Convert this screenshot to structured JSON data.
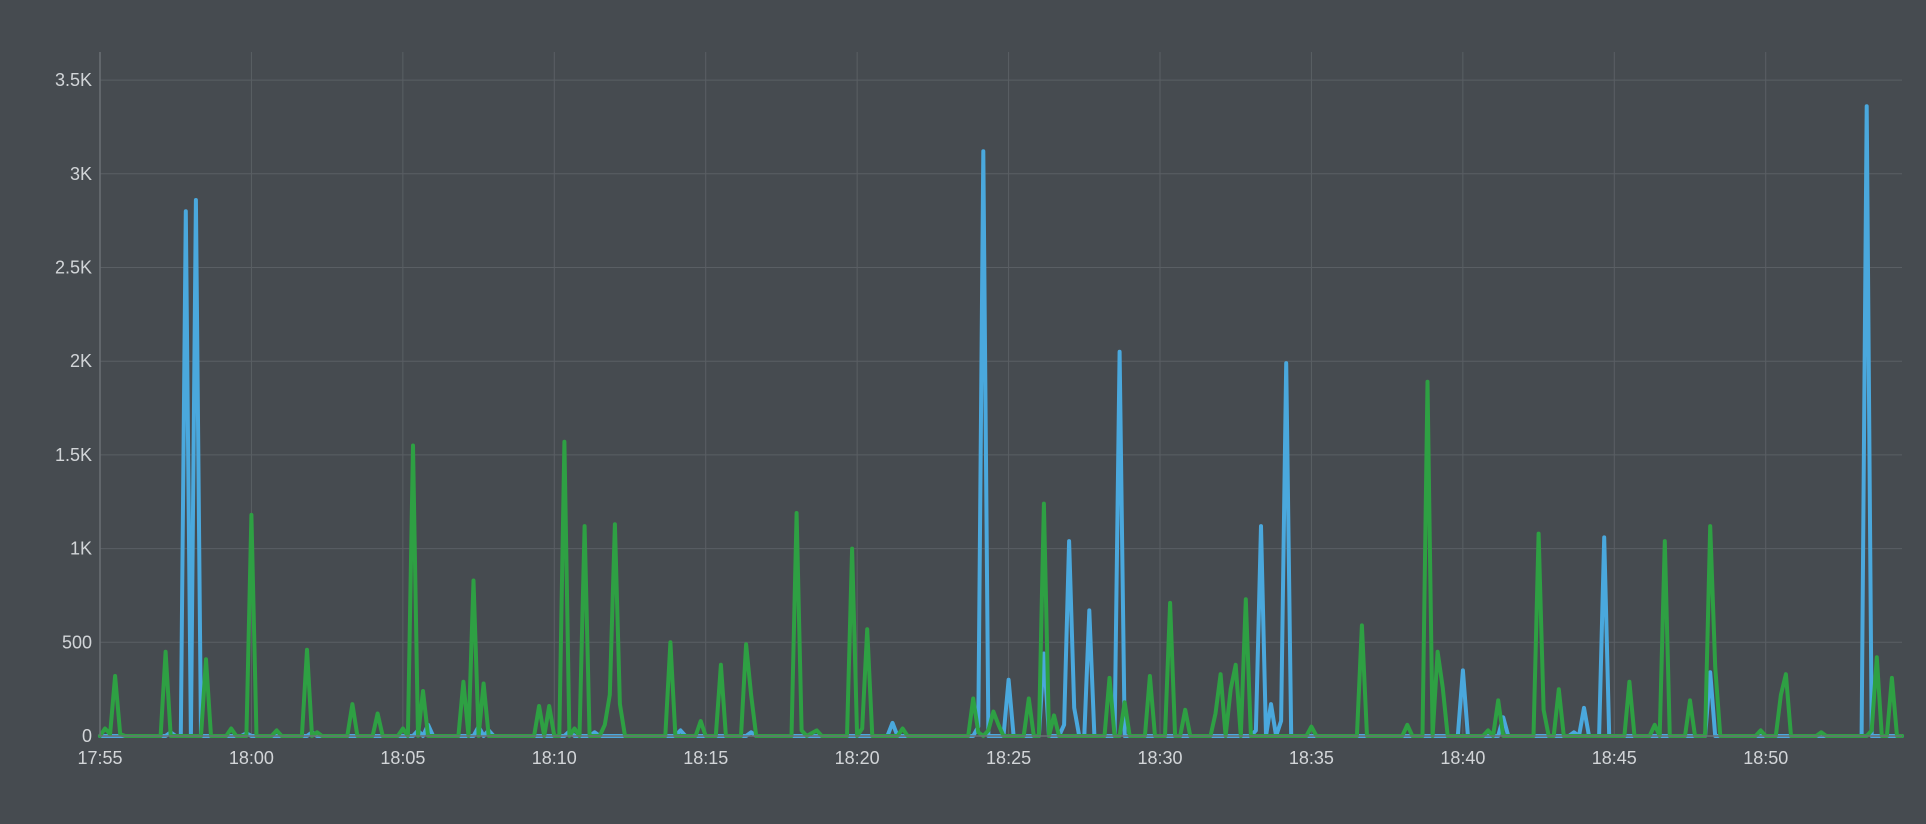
{
  "chart_data": {
    "type": "line",
    "title": "",
    "xlabel": "",
    "ylabel": "",
    "x_start": "17:55",
    "x_end": "18:54:30",
    "x_step_seconds": 10,
    "ylim": [
      0,
      3650
    ],
    "yticks": [
      0,
      500,
      1000,
      1500,
      2000,
      2500,
      3000,
      3500
    ],
    "ytick_labels": [
      "0",
      "500",
      "1K",
      "1.5K",
      "2K",
      "2.5K",
      "3K",
      "3.5K"
    ],
    "xtick_labels": [
      "17:55",
      "18:00",
      "18:05",
      "18:10",
      "18:15",
      "18:20",
      "18:25",
      "18:30",
      "18:35",
      "18:40",
      "18:45",
      "18:50"
    ],
    "grid": true,
    "legend": "none",
    "series": [
      {
        "color": "#4aa8dd",
        "points": [
          [
            "17:55:00",
            0
          ],
          [
            "17:57:10",
            0
          ],
          [
            "17:57:20",
            20
          ],
          [
            "17:57:30",
            0
          ],
          [
            "17:57:40",
            0
          ],
          [
            "17:57:50",
            2800
          ],
          [
            "17:58:00",
            0
          ],
          [
            "17:58:10",
            2860
          ],
          [
            "17:58:20",
            0
          ],
          [
            "17:59:40",
            0
          ],
          [
            "17:59:50",
            15
          ],
          [
            "18:00:00",
            0
          ],
          [
            "18:01:50",
            0
          ],
          [
            "18:02:00",
            20
          ],
          [
            "18:02:10",
            0
          ],
          [
            "18:05:20",
            0
          ],
          [
            "18:05:30",
            30
          ],
          [
            "18:05:40",
            0
          ],
          [
            "18:05:50",
            60
          ],
          [
            "18:06:00",
            0
          ],
          [
            "18:07:20",
            0
          ],
          [
            "18:07:30",
            50
          ],
          [
            "18:07:40",
            0
          ],
          [
            "18:07:50",
            30
          ],
          [
            "18:08:00",
            0
          ],
          [
            "18:10:20",
            0
          ],
          [
            "18:10:30",
            25
          ],
          [
            "18:10:40",
            0
          ],
          [
            "18:11:10",
            0
          ],
          [
            "18:11:20",
            20
          ],
          [
            "18:11:30",
            0
          ],
          [
            "18:14:00",
            0
          ],
          [
            "18:14:10",
            30
          ],
          [
            "18:14:20",
            0
          ],
          [
            "18:16:20",
            0
          ],
          [
            "18:16:30",
            20
          ],
          [
            "18:16:40",
            0
          ],
          [
            "18:21:00",
            0
          ],
          [
            "18:21:10",
            70
          ],
          [
            "18:21:20",
            0
          ],
          [
            "18:23:50",
            0
          ],
          [
            "18:24:00",
            50
          ],
          [
            "18:24:10",
            3120
          ],
          [
            "18:24:20",
            0
          ],
          [
            "18:24:50",
            0
          ],
          [
            "18:25:00",
            300
          ],
          [
            "18:25:10",
            0
          ],
          [
            "18:26:00",
            0
          ],
          [
            "18:26:10",
            440
          ],
          [
            "18:26:20",
            0
          ],
          [
            "18:26:40",
            0
          ],
          [
            "18:26:50",
            60
          ],
          [
            "18:27:00",
            1040
          ],
          [
            "18:27:10",
            150
          ],
          [
            "18:27:20",
            0
          ],
          [
            "18:27:30",
            0
          ],
          [
            "18:27:40",
            670
          ],
          [
            "18:27:50",
            0
          ],
          [
            "18:28:30",
            0
          ],
          [
            "18:28:40",
            2050
          ],
          [
            "18:28:50",
            0
          ],
          [
            "18:33:00",
            0
          ],
          [
            "18:33:10",
            30
          ],
          [
            "18:33:20",
            1120
          ],
          [
            "18:33:30",
            0
          ],
          [
            "18:33:40",
            170
          ],
          [
            "18:33:50",
            0
          ],
          [
            "18:34:00",
            80
          ],
          [
            "18:34:10",
            1990
          ],
          [
            "18:34:20",
            0
          ],
          [
            "18:39:50",
            0
          ],
          [
            "18:40:00",
            350
          ],
          [
            "18:40:10",
            0
          ],
          [
            "18:41:10",
            0
          ],
          [
            "18:41:20",
            100
          ],
          [
            "18:41:30",
            0
          ],
          [
            "18:43:30",
            0
          ],
          [
            "18:43:40",
            20
          ],
          [
            "18:43:50",
            0
          ],
          [
            "18:44:00",
            150
          ],
          [
            "18:44:10",
            0
          ],
          [
            "18:44:30",
            0
          ],
          [
            "18:44:40",
            1060
          ],
          [
            "18:44:50",
            0
          ],
          [
            "18:48:00",
            0
          ],
          [
            "18:48:10",
            340
          ],
          [
            "18:48:20",
            0
          ],
          [
            "18:53:10",
            0
          ],
          [
            "18:53:20",
            3360
          ],
          [
            "18:53:30",
            0
          ],
          [
            "18:54:30",
            0
          ]
        ]
      },
      {
        "color": "#2ea043",
        "points": [
          [
            "17:55:00",
            0
          ],
          [
            "17:55:10",
            40
          ],
          [
            "17:55:20",
            10
          ],
          [
            "17:55:30",
            320
          ],
          [
            "17:55:40",
            10
          ],
          [
            "17:55:50",
            0
          ],
          [
            "17:57:00",
            0
          ],
          [
            "17:57:10",
            450
          ],
          [
            "17:57:20",
            0
          ],
          [
            "17:58:20",
            0
          ],
          [
            "17:58:30",
            410
          ],
          [
            "17:58:40",
            0
          ],
          [
            "17:59:10",
            0
          ],
          [
            "17:59:20",
            40
          ],
          [
            "17:59:30",
            0
          ],
          [
            "17:59:50",
            0
          ],
          [
            "18:00:00",
            1180
          ],
          [
            "18:00:10",
            0
          ],
          [
            "18:00:40",
            0
          ],
          [
            "18:00:50",
            30
          ],
          [
            "18:01:00",
            0
          ],
          [
            "18:01:40",
            0
          ],
          [
            "18:01:50",
            460
          ],
          [
            "18:02:00",
            0
          ],
          [
            "18:02:10",
            20
          ],
          [
            "18:02:20",
            0
          ],
          [
            "18:03:10",
            0
          ],
          [
            "18:03:20",
            170
          ],
          [
            "18:03:30",
            0
          ],
          [
            "18:04:00",
            0
          ],
          [
            "18:04:10",
            120
          ],
          [
            "18:04:20",
            0
          ],
          [
            "18:04:50",
            0
          ],
          [
            "18:05:00",
            40
          ],
          [
            "18:05:10",
            0
          ],
          [
            "18:05:20",
            1550
          ],
          [
            "18:05:30",
            0
          ],
          [
            "18:05:40",
            240
          ],
          [
            "18:05:50",
            0
          ],
          [
            "18:06:50",
            0
          ],
          [
            "18:07:00",
            290
          ],
          [
            "18:07:10",
            0
          ],
          [
            "18:07:20",
            830
          ],
          [
            "18:07:30",
            0
          ],
          [
            "18:07:40",
            280
          ],
          [
            "18:07:50",
            0
          ],
          [
            "18:09:20",
            0
          ],
          [
            "18:09:30",
            160
          ],
          [
            "18:09:40",
            0
          ],
          [
            "18:09:50",
            160
          ],
          [
            "18:10:00",
            0
          ],
          [
            "18:10:10",
            0
          ],
          [
            "18:10:20",
            1570
          ],
          [
            "18:10:30",
            0
          ],
          [
            "18:10:40",
            40
          ],
          [
            "18:10:50",
            0
          ],
          [
            "18:11:00",
            1120
          ],
          [
            "18:11:10",
            0
          ],
          [
            "18:11:30",
            0
          ],
          [
            "18:11:40",
            60
          ],
          [
            "18:11:50",
            220
          ],
          [
            "18:12:00",
            1130
          ],
          [
            "18:12:10",
            170
          ],
          [
            "18:12:20",
            0
          ],
          [
            "18:13:40",
            0
          ],
          [
            "18:13:50",
            500
          ],
          [
            "18:14:00",
            0
          ],
          [
            "18:14:40",
            0
          ],
          [
            "18:14:50",
            80
          ],
          [
            "18:15:00",
            0
          ],
          [
            "18:15:20",
            0
          ],
          [
            "18:15:30",
            380
          ],
          [
            "18:15:40",
            0
          ],
          [
            "18:16:10",
            0
          ],
          [
            "18:16:20",
            490
          ],
          [
            "18:16:30",
            220
          ],
          [
            "18:16:40",
            0
          ],
          [
            "18:17:50",
            0
          ],
          [
            "18:18:00",
            1190
          ],
          [
            "18:18:10",
            30
          ],
          [
            "18:18:20",
            0
          ],
          [
            "18:18:40",
            30
          ],
          [
            "18:18:50",
            0
          ],
          [
            "18:19:40",
            0
          ],
          [
            "18:19:50",
            1000
          ],
          [
            "18:20:00",
            0
          ],
          [
            "18:20:10",
            40
          ],
          [
            "18:20:20",
            570
          ],
          [
            "18:20:30",
            0
          ],
          [
            "18:21:20",
            0
          ],
          [
            "18:21:30",
            40
          ],
          [
            "18:21:40",
            0
          ],
          [
            "18:23:40",
            0
          ],
          [
            "18:23:50",
            200
          ],
          [
            "18:24:00",
            20
          ],
          [
            "18:24:10",
            0
          ],
          [
            "18:24:20",
            30
          ],
          [
            "18:24:30",
            130
          ],
          [
            "18:24:40",
            60
          ],
          [
            "18:24:50",
            0
          ],
          [
            "18:25:30",
            0
          ],
          [
            "18:25:40",
            200
          ],
          [
            "18:25:50",
            0
          ],
          [
            "18:26:00",
            0
          ],
          [
            "18:26:10",
            1240
          ],
          [
            "18:26:20",
            0
          ],
          [
            "18:26:30",
            110
          ],
          [
            "18:26:40",
            0
          ],
          [
            "18:28:10",
            0
          ],
          [
            "18:28:20",
            310
          ],
          [
            "18:28:30",
            0
          ],
          [
            "18:28:40",
            0
          ],
          [
            "18:28:50",
            180
          ],
          [
            "18:29:00",
            0
          ],
          [
            "18:29:30",
            0
          ],
          [
            "18:29:40",
            320
          ],
          [
            "18:29:50",
            0
          ],
          [
            "18:30:10",
            0
          ],
          [
            "18:30:20",
            710
          ],
          [
            "18:30:30",
            0
          ],
          [
            "18:30:40",
            0
          ],
          [
            "18:30:50",
            140
          ],
          [
            "18:31:00",
            0
          ],
          [
            "18:31:40",
            0
          ],
          [
            "18:31:50",
            120
          ],
          [
            "18:32:00",
            330
          ],
          [
            "18:32:10",
            0
          ],
          [
            "18:32:20",
            250
          ],
          [
            "18:32:30",
            380
          ],
          [
            "18:32:40",
            0
          ],
          [
            "18:32:50",
            730
          ],
          [
            "18:33:00",
            0
          ],
          [
            "18:34:50",
            0
          ],
          [
            "18:35:00",
            50
          ],
          [
            "18:35:10",
            0
          ],
          [
            "18:36:30",
            0
          ],
          [
            "18:36:40",
            590
          ],
          [
            "18:36:50",
            0
          ],
          [
            "18:38:00",
            0
          ],
          [
            "18:38:10",
            60
          ],
          [
            "18:38:20",
            0
          ],
          [
            "18:38:40",
            0
          ],
          [
            "18:38:50",
            1890
          ],
          [
            "18:39:00",
            0
          ],
          [
            "18:39:10",
            450
          ],
          [
            "18:39:20",
            260
          ],
          [
            "18:39:30",
            0
          ],
          [
            "18:40:40",
            0
          ],
          [
            "18:40:50",
            30
          ],
          [
            "18:41:00",
            0
          ],
          [
            "18:41:10",
            190
          ],
          [
            "18:41:20",
            0
          ],
          [
            "18:42:20",
            0
          ],
          [
            "18:42:30",
            1080
          ],
          [
            "18:42:40",
            140
          ],
          [
            "18:42:50",
            0
          ],
          [
            "18:43:00",
            0
          ],
          [
            "18:43:10",
            250
          ],
          [
            "18:43:20",
            0
          ],
          [
            "18:45:20",
            0
          ],
          [
            "18:45:30",
            290
          ],
          [
            "18:45:40",
            0
          ],
          [
            "18:46:10",
            0
          ],
          [
            "18:46:20",
            60
          ],
          [
            "18:46:30",
            0
          ],
          [
            "18:46:40",
            1040
          ],
          [
            "18:46:50",
            0
          ],
          [
            "18:47:20",
            0
          ],
          [
            "18:47:30",
            190
          ],
          [
            "18:47:40",
            0
          ],
          [
            "18:48:00",
            0
          ],
          [
            "18:48:10",
            1120
          ],
          [
            "18:48:20",
            370
          ],
          [
            "18:48:30",
            0
          ],
          [
            "18:49:40",
            0
          ],
          [
            "18:49:50",
            30
          ],
          [
            "18:50:00",
            0
          ],
          [
            "18:50:20",
            0
          ],
          [
            "18:50:30",
            220
          ],
          [
            "18:50:40",
            330
          ],
          [
            "18:50:50",
            0
          ],
          [
            "18:51:40",
            0
          ],
          [
            "18:51:50",
            20
          ],
          [
            "18:52:00",
            0
          ],
          [
            "18:53:20",
            0
          ],
          [
            "18:53:30",
            30
          ],
          [
            "18:53:40",
            420
          ],
          [
            "18:53:50",
            0
          ],
          [
            "18:54:00",
            0
          ],
          [
            "18:54:10",
            310
          ],
          [
            "18:54:20",
            0
          ],
          [
            "18:54:30",
            0
          ]
        ]
      }
    ]
  }
}
